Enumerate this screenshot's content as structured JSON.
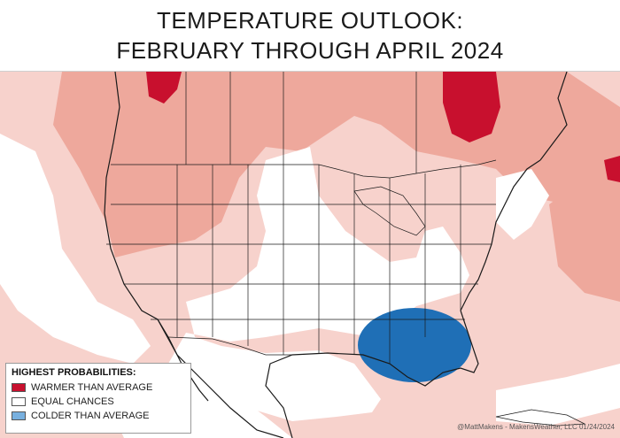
{
  "title": {
    "line1": "TEMPERATURE OUTLOOK:",
    "line2": "FEBRUARY THROUGH APRIL 2024"
  },
  "legend": {
    "heading": "HIGHEST PROBABILITIES:",
    "items": [
      {
        "label": "WARMER THAN AVERAGE",
        "color": "#c8102e"
      },
      {
        "label": "EQUAL CHANCES",
        "color": "#ffffff"
      },
      {
        "label": "COLDER THAN AVERAGE",
        "color": "#78b0df"
      }
    ]
  },
  "credit": "@MattMakens - MakensWeather, LLC 01/24/2024",
  "colors": {
    "warm_light": "#f7d2cc",
    "warm_mid": "#eea89c",
    "warm_strong": "#c8102e",
    "cold": "#1f6fb6",
    "border": "#1a1a1a"
  }
}
